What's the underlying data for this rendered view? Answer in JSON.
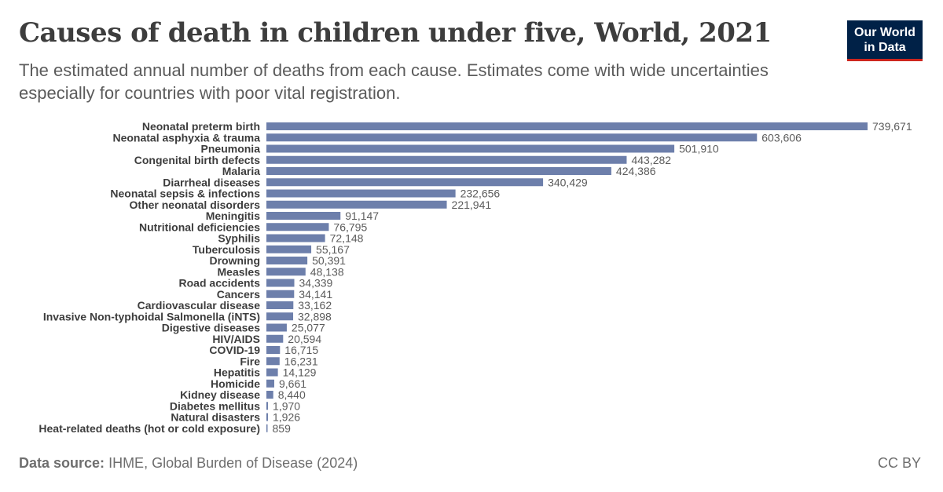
{
  "header": {
    "title": "Causes of death in children under five, World, 2021",
    "subtitle": "The estimated annual number of deaths from each cause. Estimates come with wide uncertainties especially for countries with poor vital registration.",
    "logo_line1": "Our World",
    "logo_line2": "in Data"
  },
  "footer": {
    "source_label": "Data source:",
    "source_text": "IHME, Global Burden of Disease (2024)",
    "license": "CC BY"
  },
  "colors": {
    "bar": "#6d7fab",
    "logo_bg": "#002147",
    "logo_accent": "#ce261e"
  },
  "chart_data": {
    "type": "bar",
    "orientation": "horizontal",
    "categories": [
      "Neonatal preterm birth",
      "Neonatal asphyxia & trauma",
      "Pneumonia",
      "Congenital birth defects",
      "Malaria",
      "Diarrheal diseases",
      "Neonatal sepsis & infections",
      "Other neonatal disorders",
      "Meningitis",
      "Nutritional deficiencies",
      "Syphilis",
      "Tuberculosis",
      "Drowning",
      "Measles",
      "Road accidents",
      "Cancers",
      "Cardiovascular disease",
      "Invasive Non-typhoidal Salmonella (iNTS)",
      "Digestive diseases",
      "HIV/AIDS",
      "COVID-19",
      "Fire",
      "Hepatitis",
      "Homicide",
      "Kidney disease",
      "Diabetes mellitus",
      "Natural disasters",
      "Heat-related deaths (hot or cold exposure)"
    ],
    "values": [
      739671,
      603606,
      501910,
      443282,
      424386,
      340429,
      232656,
      221941,
      91147,
      76795,
      72148,
      55167,
      50391,
      48138,
      34339,
      34141,
      33162,
      32898,
      25077,
      20594,
      16715,
      16231,
      14129,
      9661,
      8440,
      1970,
      1926,
      859
    ],
    "value_labels": [
      "739,671",
      "603,606",
      "501,910",
      "443,282",
      "424,386",
      "340,429",
      "232,656",
      "221,941",
      "91,147",
      "76,795",
      "72,148",
      "55,167",
      "50,391",
      "48,138",
      "34,339",
      "34,141",
      "33,162",
      "32,898",
      "25,077",
      "20,594",
      "16,715",
      "16,231",
      "14,129",
      "9,661",
      "8,440",
      "1,970",
      "1,926",
      "859"
    ],
    "xlim": [
      0,
      739671
    ],
    "grid": false,
    "legend": "none"
  }
}
